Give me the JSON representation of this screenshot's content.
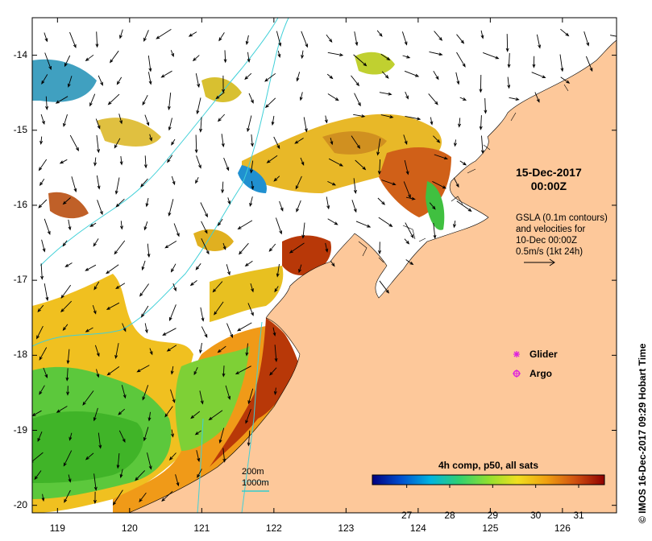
{
  "date_line1": "15-Dec-2017",
  "date_line2": "00:00Z",
  "gsla_lines": [
    "GSLA (0.1m contours)",
    "and velocities for",
    "10-Dec 00:00Z",
    "0.5m/s (1kt 24h)"
  ],
  "credit": "© IMOS 16-Dec-2017 09:29 Hobart Time",
  "legend": {
    "glider": "Glider",
    "argo": "Argo",
    "glider_color": "#dd22dd",
    "argo_color": "#dd22dd"
  },
  "contour_legend": {
    "c200": "200m",
    "c1000": "1000m",
    "color": "#33cccc"
  },
  "colorbar": {
    "title": "4h comp, p50, all sats",
    "ticks": [
      "27",
      "28",
      "29",
      "30",
      "31"
    ],
    "tick_values": [
      27,
      28,
      29,
      30,
      31
    ],
    "range": [
      26.2,
      31.6
    ],
    "colors": [
      "#000080",
      "#0050d0",
      "#00b4e0",
      "#30d070",
      "#90e030",
      "#f0e020",
      "#f0a010",
      "#d05010",
      "#900000"
    ]
  },
  "axes": {
    "x_ticks": [
      "119",
      "120",
      "121",
      "122",
      "123",
      "124",
      "125",
      "126"
    ],
    "x_values": [
      119,
      120,
      121,
      122,
      123,
      124,
      125,
      126
    ],
    "y_ticks": [
      "-14",
      "-15",
      "-16",
      "-17",
      "-18",
      "-19",
      "-20"
    ],
    "y_values": [
      -14,
      -15,
      -16,
      -17,
      -18,
      -19,
      -20
    ],
    "lon_range": [
      118.65,
      126.75
    ],
    "lat_range": [
      -20.1,
      -13.5
    ]
  },
  "colors": {
    "land": "#fdc89a",
    "contour": "#40d0d8",
    "arrow": "#000000"
  }
}
